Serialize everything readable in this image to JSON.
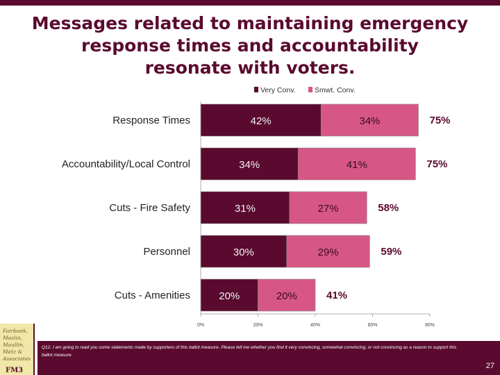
{
  "title": {
    "line1": "Messages related to maintaining emergency",
    "line2": "response times and accountability",
    "line3": "resonate with voters."
  },
  "colors": {
    "very": "#5a0a2e",
    "smwt": "#d65786",
    "accent": "#5a0a2e"
  },
  "chart_data": {
    "type": "bar",
    "orientation": "horizontal",
    "stacked": true,
    "categories": [
      "Response Times",
      "Accountability/Local Control",
      "Cuts - Fire Safety",
      "Personnel",
      "Cuts - Amenities"
    ],
    "series": [
      {
        "name": "Very Conv.",
        "values": [
          42,
          34,
          31,
          30,
          20
        ],
        "labels": [
          "42%",
          "34%",
          "31%",
          "30%",
          "20%"
        ]
      },
      {
        "name": "Smwt. Conv.",
        "values": [
          34,
          41,
          27,
          29,
          20
        ],
        "labels": [
          "34%",
          "41%",
          "27%",
          "29%",
          "20%"
        ]
      }
    ],
    "totals": [
      "75%",
      "75%",
      "58%",
      "59%",
      "41%"
    ],
    "xlim": [
      0,
      80
    ],
    "xticks": [
      "0%",
      "20%",
      "40%",
      "60%",
      "80%"
    ],
    "legend": "top-center"
  },
  "footer": {
    "question": "Q12. I am going to read you some statements made by supporters of this ballot measure. Please tell me whether you find it very convincing, somewhat convincing, or not convincing as a reason to support this ballot measure.",
    "page_number": "27"
  },
  "logo": {
    "text": "Fairbank, Maslin, Maullin, Metz & Associates",
    "abbr": "FM3"
  }
}
